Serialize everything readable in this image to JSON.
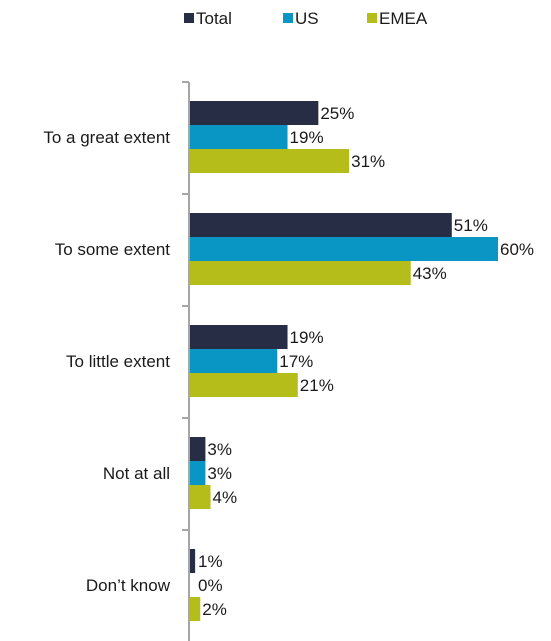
{
  "chart_data": {
    "type": "bar",
    "orientation": "horizontal",
    "categories": [
      "To a great extent",
      "To some extent",
      "To little extent",
      "Not at all",
      "Don’t know"
    ],
    "series": [
      {
        "name": "Total",
        "color": "#262d44",
        "values": [
          25,
          51,
          19,
          3,
          1
        ]
      },
      {
        "name": "US",
        "color": "#0a96c4",
        "values": [
          19,
          60,
          17,
          3,
          0
        ]
      },
      {
        "name": "EMEA",
        "color": "#b5bd1b",
        "values": [
          31,
          43,
          21,
          4,
          2
        ]
      }
    ],
    "value_suffix": "%",
    "xlim": [
      0,
      60
    ],
    "grid": false,
    "legend_position": "top"
  }
}
